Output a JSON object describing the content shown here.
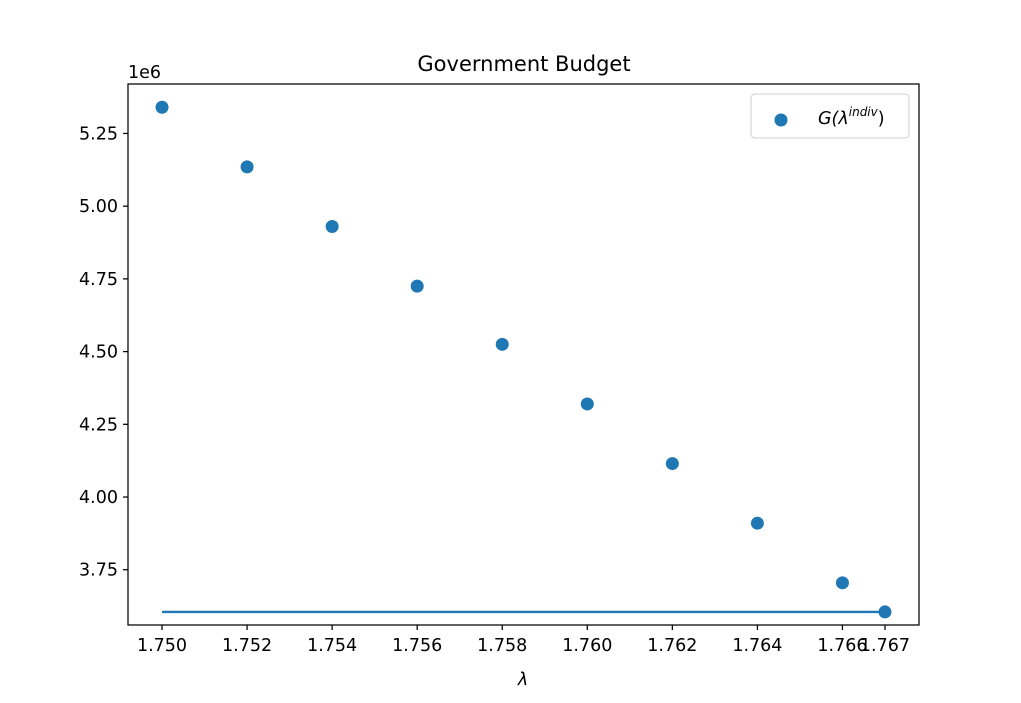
{
  "chart_data": {
    "type": "scatter",
    "title": "Government Budget",
    "xlabel": "λ",
    "ylabel": "",
    "y_offset_label": "1e6",
    "y_multiplier": 1000000,
    "xlim": [
      1.7492,
      1.7678
    ],
    "ylim": [
      3.56,
      5.42
    ],
    "x_ticks": [
      1.75,
      1.752,
      1.754,
      1.756,
      1.758,
      1.76,
      1.762,
      1.764,
      1.766,
      1.767
    ],
    "x_tick_labels": [
      "1.750",
      "1.752",
      "1.754",
      "1.756",
      "1.758",
      "1.760",
      "1.762",
      "1.764",
      "1.766",
      "1.767"
    ],
    "y_ticks": [
      3.75,
      4.0,
      4.25,
      4.5,
      4.75,
      5.0,
      5.25
    ],
    "y_tick_labels": [
      "3.75",
      "4.00",
      "4.25",
      "4.50",
      "4.75",
      "5.00",
      "5.25"
    ],
    "grid": false,
    "legend_position": "top-right",
    "series": [
      {
        "name": "G(λ^indiv)",
        "legend_base": "G(λ",
        "legend_sup": "indiv",
        "legend_close": ")",
        "type": "scatter",
        "color": "#1f77b4",
        "x": [
          1.75,
          1.752,
          1.754,
          1.756,
          1.758,
          1.76,
          1.762,
          1.764,
          1.766,
          1.767
        ],
        "y": [
          5.34,
          5.135,
          4.93,
          4.725,
          4.525,
          4.32,
          4.115,
          3.91,
          3.705,
          3.605
        ]
      },
      {
        "type": "line",
        "color": "#1f77b4",
        "x": [
          1.75,
          1.767
        ],
        "y": [
          3.605,
          3.605
        ]
      }
    ]
  }
}
